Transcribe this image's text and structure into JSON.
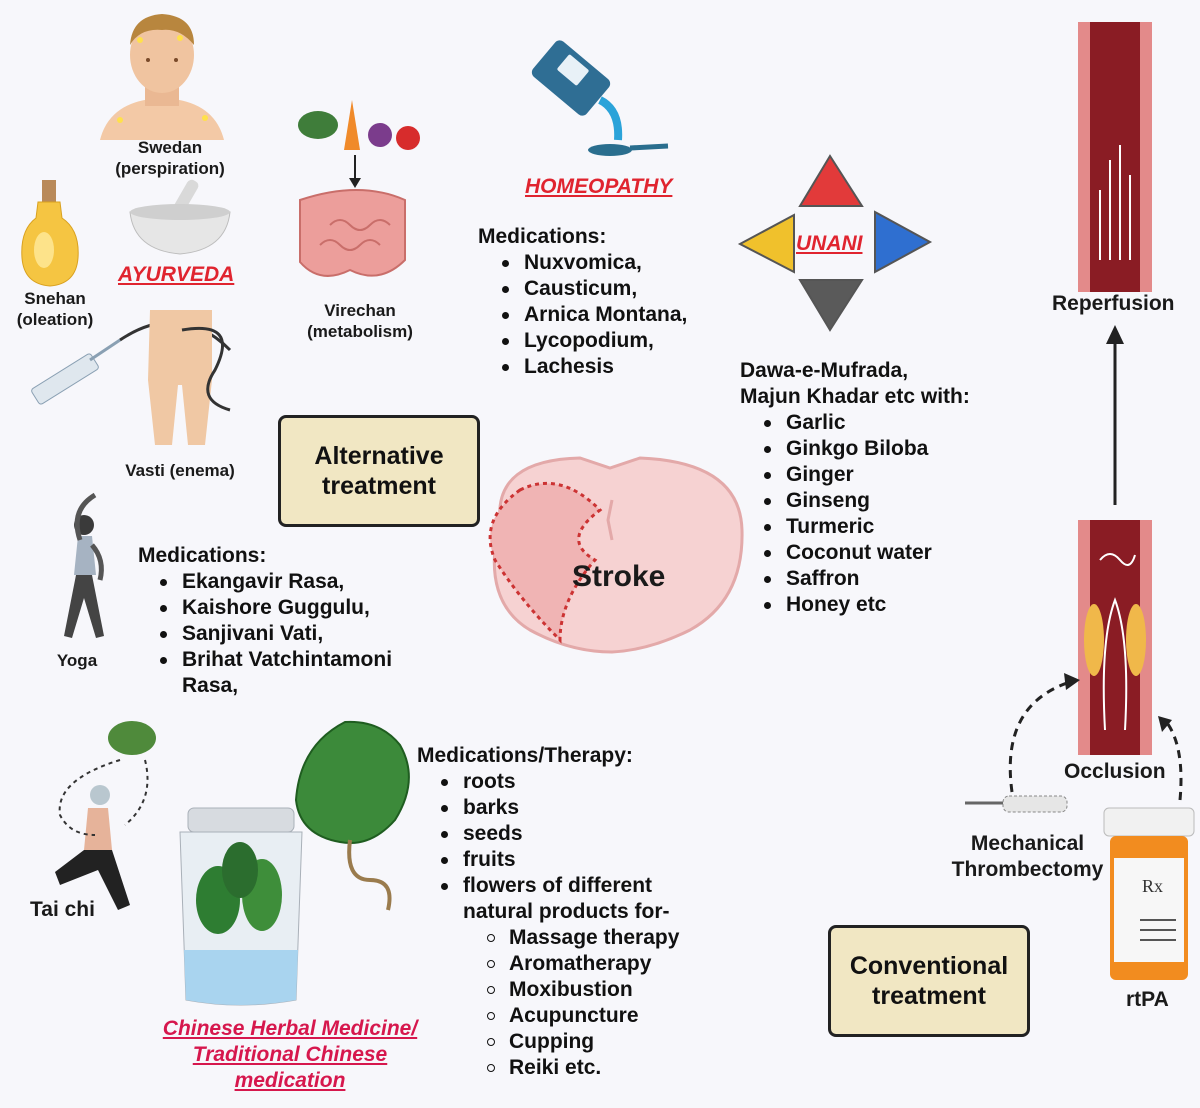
{
  "center": {
    "label": "Stroke"
  },
  "alternative_box": {
    "line1": "Alternative",
    "line2": "treatment"
  },
  "conventional_box": {
    "line1": "Conventional",
    "line2": "treatment"
  },
  "ayurveda": {
    "title": "AYURVEDA",
    "swedan": [
      "Swedan",
      "(perspiration)"
    ],
    "snehan": [
      "Snehan",
      "(oleation)"
    ],
    "virechan": [
      "Virechan",
      "(metabolism)"
    ],
    "vasti": "Vasti (enema)",
    "yoga": "Yoga",
    "medications_heading": "Medications:",
    "medications": [
      "Ekangavir Rasa,",
      "Kaishore Guggulu,",
      "Sanjivani Vati,",
      "Brihat Vatchintamoni Rasa,"
    ]
  },
  "homeopathy": {
    "title": "HOMEOPATHY",
    "medications_heading": "Medications:",
    "medications": [
      "Nuxvomica,",
      "Causticum,",
      "Arnica Montana,",
      "Lycopodium,",
      "Lachesis"
    ]
  },
  "unani": {
    "title": "UNANI",
    "intro": [
      "Dawa-e-Mufrada,",
      "Majun Khadar etc with:"
    ],
    "items": [
      "Garlic",
      "Ginkgo Biloba",
      "Ginger",
      "Ginseng",
      "Turmeric",
      "Coconut water",
      "Saffron",
      "Honey etc"
    ]
  },
  "chinese": {
    "title": [
      "Chinese Herbal Medicine/",
      "Traditional Chinese",
      "medication"
    ],
    "tai_chi": "Tai chi",
    "heading": "Medications/Therapy:",
    "items": [
      "roots",
      "barks",
      "seeds",
      "fruits",
      "flowers of different natural products for-"
    ],
    "subitems": [
      "Massage therapy",
      "Aromatherapy",
      "Moxibustion",
      "Acupuncture",
      "Cupping",
      "Reiki etc."
    ]
  },
  "conventional": {
    "reperfusion": "Reperfusion",
    "occlusion": "Occlusion",
    "thrombectomy": [
      "Mechanical",
      "Thrombectomy"
    ],
    "rtpa": "rtPA",
    "rx": "Rx"
  },
  "colors": {
    "red_title": "#e0242f",
    "pink_title": "#d6174d",
    "box_fill": "#f1e7c3",
    "vessel": "#8a1c24",
    "triangle_red": "#e23a3a",
    "triangle_blue": "#2f6fd0",
    "triangle_yellow": "#f0c12c",
    "triangle_gray": "#5a5a5a"
  }
}
